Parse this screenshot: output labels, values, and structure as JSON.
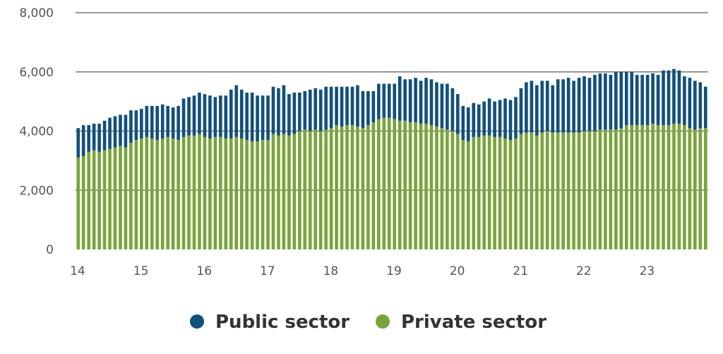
{
  "chart_data": {
    "type": "bar",
    "stacked": true,
    "title": "",
    "xlabel": "",
    "ylabel": "",
    "ylim": [
      0,
      8000
    ],
    "y_ticks": [
      0,
      2000,
      4000,
      6000,
      8000
    ],
    "y_tick_labels": [
      "0",
      "2,000",
      "4,000",
      "6,000",
      "8,000"
    ],
    "x_tick_labels": [
      "14",
      "15",
      "16",
      "17",
      "18",
      "19",
      "20",
      "21",
      "22",
      "23"
    ],
    "x_start_year": 14,
    "grid": "horizontal",
    "legend_position": "bottom",
    "series": [
      {
        "name": "Private sector",
        "color": "#7aa43a",
        "values": [
          3100,
          3150,
          3300,
          3350,
          3300,
          3350,
          3400,
          3450,
          3500,
          3450,
          3600,
          3700,
          3750,
          3800,
          3750,
          3700,
          3750,
          3800,
          3750,
          3700,
          3800,
          3850,
          3850,
          3900,
          3800,
          3750,
          3800,
          3800,
          3750,
          3750,
          3800,
          3750,
          3700,
          3650,
          3650,
          3700,
          3700,
          3900,
          3850,
          3900,
          3850,
          3900,
          4000,
          4050,
          4000,
          4050,
          4000,
          4050,
          4100,
          4200,
          4150,
          4200,
          4200,
          4150,
          4100,
          4200,
          4300,
          4400,
          4450,
          4450,
          4400,
          4350,
          4350,
          4300,
          4300,
          4250,
          4250,
          4200,
          4150,
          4100,
          4050,
          4000,
          3900,
          3700,
          3650,
          3800,
          3800,
          3850,
          3850,
          3800,
          3800,
          3750,
          3700,
          3750,
          3900,
          3950,
          3950,
          3850,
          3950,
          4000,
          3950,
          3950,
          3950,
          3950,
          3950,
          3950,
          4000,
          4000,
          4000,
          4050,
          4050,
          4050,
          4050,
          4100,
          4200,
          4200,
          4200,
          4200,
          4200,
          4250,
          4200,
          4200,
          4200,
          4250,
          4250,
          4200,
          4100,
          4050,
          4100,
          4100
        ]
      },
      {
        "name": "Public sector",
        "color": "#13507a",
        "values": [
          1000,
          1050,
          900,
          900,
          950,
          1000,
          1050,
          1050,
          1050,
          1100,
          1100,
          1000,
          1000,
          1050,
          1100,
          1150,
          1150,
          1050,
          1050,
          1150,
          1300,
          1300,
          1350,
          1400,
          1450,
          1450,
          1350,
          1400,
          1450,
          1650,
          1750,
          1650,
          1600,
          1650,
          1550,
          1500,
          1500,
          1600,
          1600,
          1650,
          1400,
          1400,
          1300,
          1300,
          1400,
          1400,
          1400,
          1450,
          1400,
          1300,
          1350,
          1300,
          1300,
          1400,
          1250,
          1150,
          1050,
          1200,
          1150,
          1150,
          1200,
          1500,
          1400,
          1450,
          1500,
          1450,
          1550,
          1550,
          1500,
          1500,
          1550,
          1450,
          1350,
          1150,
          1150,
          1150,
          1100,
          1150,
          1250,
          1200,
          1250,
          1350,
          1350,
          1400,
          1550,
          1700,
          1750,
          1700,
          1750,
          1700,
          1600,
          1800,
          1800,
          1850,
          1750,
          1850,
          1850,
          1800,
          1900,
          1900,
          1900,
          1850,
          1950,
          1900,
          1800,
          1800,
          1700,
          1700,
          1700,
          1700,
          1700,
          1850,
          1850,
          1850,
          1800,
          1650,
          1700,
          1650,
          1550,
          1400
        ]
      }
    ]
  }
}
